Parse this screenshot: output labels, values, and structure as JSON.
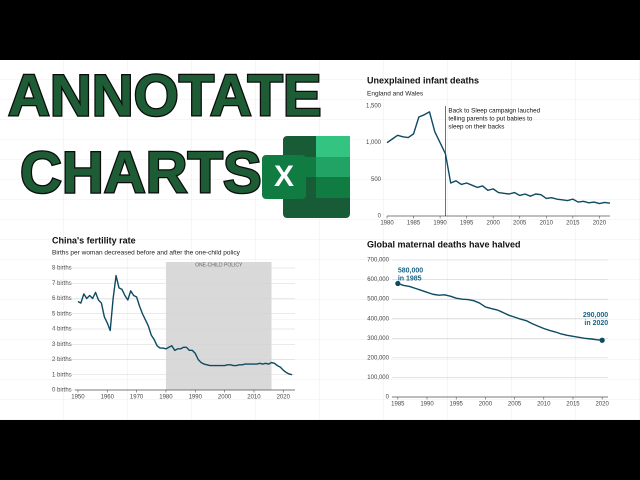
{
  "headline": [
    "ANNOTATE",
    "CHARTS"
  ],
  "chart_data": [
    {
      "type": "line",
      "title": "Unexplained infant deaths",
      "subtitle": "England and Wales",
      "color": "#0e4a62",
      "grid": false,
      "x": [
        1980,
        1981,
        1982,
        1983,
        1984,
        1985,
        1986,
        1987,
        1988,
        1989,
        1990,
        1991,
        1992,
        1993,
        1994,
        1995,
        1996,
        1997,
        1998,
        1999,
        2000,
        2001,
        2002,
        2003,
        2004,
        2005,
        2006,
        2007,
        2008,
        2009,
        2010,
        2011,
        2012,
        2013,
        2014,
        2015,
        2016,
        2017,
        2018,
        2019,
        2020,
        2021,
        2022
      ],
      "values": [
        1000,
        1050,
        1100,
        1080,
        1070,
        1120,
        1350,
        1380,
        1420,
        1150,
        1000,
        850,
        450,
        480,
        430,
        450,
        420,
        390,
        410,
        350,
        370,
        320,
        310,
        300,
        320,
        280,
        300,
        270,
        300,
        290,
        240,
        250,
        230,
        220,
        210,
        230,
        190,
        200,
        180,
        190,
        170,
        185,
        175
      ],
      "xlim": [
        1980,
        2022
      ],
      "xticks": [
        1980,
        1985,
        1990,
        1995,
        2000,
        2005,
        2010,
        2015,
        2020
      ],
      "ylim": [
        0,
        1500
      ],
      "yticks": [
        0,
        500,
        {
          "value": 1000,
          "label": "1,000"
        },
        {
          "value": 1500,
          "label": "1,500"
        }
      ],
      "annotation": {
        "x": 1991,
        "lines": [
          "Back to Sleep campaign lauched",
          "telling parents to put babies to",
          "sleep on their backs"
        ]
      }
    },
    {
      "type": "line",
      "title": "China's fertility rate",
      "subtitle": "Births per woman decreased before and after the one-child policy",
      "color": "#0e4a62",
      "grid": true,
      "x": [
        1950,
        1951,
        1952,
        1953,
        1954,
        1955,
        1956,
        1957,
        1958,
        1959,
        1960,
        1961,
        1962,
        1963,
        1964,
        1965,
        1966,
        1967,
        1968,
        1969,
        1970,
        1971,
        1972,
        1973,
        1974,
        1975,
        1976,
        1977,
        1978,
        1979,
        1980,
        1981,
        1982,
        1983,
        1984,
        1985,
        1986,
        1987,
        1988,
        1989,
        1990,
        1991,
        1992,
        1993,
        1994,
        1995,
        1996,
        1997,
        1998,
        1999,
        2000,
        2001,
        2002,
        2003,
        2004,
        2005,
        2006,
        2007,
        2008,
        2009,
        2010,
        2011,
        2012,
        2013,
        2014,
        2015,
        2016,
        2017,
        2018,
        2019,
        2020,
        2021,
        2022,
        2023
      ],
      "values": [
        5.8,
        5.7,
        6.3,
        6.0,
        6.2,
        6.0,
        6.4,
        5.9,
        5.7,
        4.8,
        4.4,
        3.9,
        6.0,
        7.5,
        6.7,
        6.6,
        6.2,
        5.9,
        6.5,
        6.2,
        6.1,
        5.5,
        5.0,
        4.6,
        4.2,
        3.6,
        3.3,
        2.9,
        2.75,
        2.75,
        2.7,
        2.8,
        2.9,
        2.6,
        2.7,
        2.7,
        2.8,
        2.8,
        2.6,
        2.6,
        2.4,
        2.0,
        1.8,
        1.7,
        1.65,
        1.6,
        1.6,
        1.6,
        1.6,
        1.6,
        1.6,
        1.65,
        1.65,
        1.6,
        1.6,
        1.65,
        1.65,
        1.7,
        1.7,
        1.7,
        1.7,
        1.7,
        1.75,
        1.7,
        1.75,
        1.7,
        1.8,
        1.75,
        1.6,
        1.5,
        1.3,
        1.15,
        1.05,
        1.0
      ],
      "xlim": [
        1949,
        2024
      ],
      "xticks": [
        1950,
        1960,
        1970,
        1980,
        1990,
        2000,
        2010,
        2020
      ],
      "ylim": [
        0,
        8
      ],
      "yticks": [
        {
          "value": 0,
          "label": "0 births"
        },
        {
          "value": 1,
          "label": "1 births"
        },
        {
          "value": 2,
          "label": "2 births"
        },
        {
          "value": 3,
          "label": "3 births"
        },
        {
          "value": 4,
          "label": "4 births"
        },
        {
          "value": 5,
          "label": "5 births"
        },
        {
          "value": 6,
          "label": "6 births"
        },
        {
          "value": 7,
          "label": "7 births"
        },
        {
          "value": 8,
          "label": "8 births"
        }
      ],
      "shaded": {
        "from": 1980,
        "to": 2016,
        "label": "ONE-CHILD POLICY"
      }
    },
    {
      "type": "line",
      "title": "Global maternal deaths have halved",
      "color": "#0e4a62",
      "grid": true,
      "x": [
        1985,
        1986,
        1987,
        1988,
        1989,
        1990,
        1991,
        1992,
        1993,
        1994,
        1995,
        1996,
        1997,
        1998,
        1999,
        2000,
        2001,
        2002,
        2003,
        2004,
        2005,
        2006,
        2007,
        2008,
        2009,
        2010,
        2011,
        2012,
        2013,
        2014,
        2015,
        2016,
        2017,
        2018,
        2019,
        2020
      ],
      "values": [
        580000,
        570000,
        565000,
        555000,
        545000,
        535000,
        525000,
        520000,
        522000,
        515000,
        505000,
        500000,
        498000,
        492000,
        480000,
        460000,
        452000,
        445000,
        432000,
        418000,
        408000,
        398000,
        390000,
        375000,
        362000,
        350000,
        340000,
        332000,
        322000,
        315000,
        310000,
        305000,
        300000,
        297000,
        293000,
        290000
      ],
      "xlim": [
        1984,
        2021
      ],
      "xticks": [
        1985,
        1990,
        1995,
        2000,
        2005,
        2010,
        2015,
        2020
      ],
      "ylim": [
        0,
        700000
      ],
      "yticks": [
        0,
        {
          "value": 100000,
          "label": "100,000"
        },
        {
          "value": 200000,
          "label": "200,000"
        },
        {
          "value": 300000,
          "label": "300,000"
        },
        {
          "value": 400000,
          "label": "400,000"
        },
        {
          "value": 500000,
          "label": "500,000"
        },
        {
          "value": 600000,
          "label": "600,000"
        },
        {
          "value": 700000,
          "label": "700,000"
        }
      ],
      "point_labels": [
        {
          "index": 0,
          "lines": [
            "580,000",
            "in 1985"
          ]
        },
        {
          "index": 35,
          "lines": [
            "290,000",
            "in 2020"
          ]
        }
      ]
    }
  ]
}
